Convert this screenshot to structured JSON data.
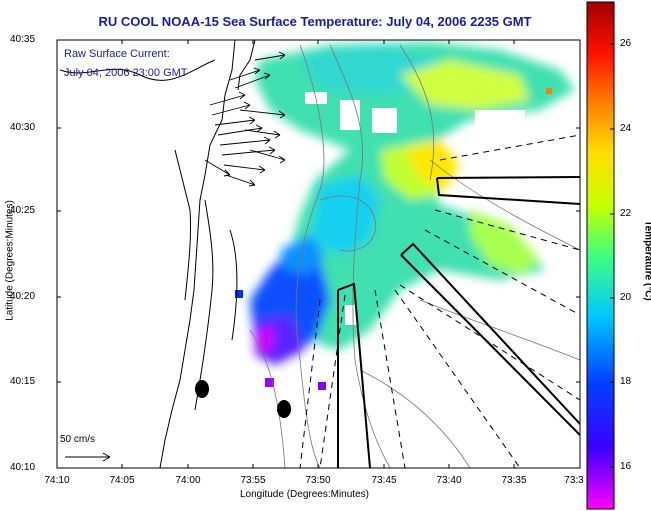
{
  "title": "RU COOL  NOAA-15  Sea Surface Temperature:  July 04, 2006 2235 GMT",
  "annotation": {
    "line1": "Raw Surface Current:",
    "line2": "July 04, 2006 23:00 GMT"
  },
  "scale_label": "50 cm/s",
  "axes": {
    "xlabel": "Longitude (Degrees:Minutes)",
    "ylabel": "Latitude (Degrees:Minutes)",
    "xticks": [
      "74:10",
      "74:05",
      "74:00",
      "73:55",
      "73:50",
      "73:45",
      "73:40",
      "73:35",
      "73:3"
    ],
    "yticks": [
      "40:35",
      "40:30",
      "40:25",
      "40:20",
      "40:15",
      "40:10"
    ]
  },
  "colorbar": {
    "label": "Temperature (°C)",
    "ticks": [
      "26",
      "24",
      "22",
      "20",
      "18",
      "16"
    ],
    "range": [
      15,
      27
    ],
    "colormap": "jet"
  }
}
